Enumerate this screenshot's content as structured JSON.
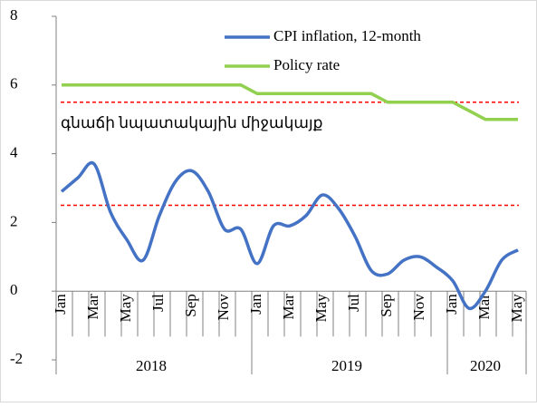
{
  "chart_data": {
    "type": "line",
    "categories": [
      "Jan",
      null,
      "Mar",
      null,
      "May",
      null,
      "Jul",
      null,
      "Sep",
      null,
      "Nov",
      null,
      "Jan",
      null,
      "Mar",
      null,
      "May",
      null,
      "Jul",
      null,
      "Sep",
      null,
      "Nov",
      null,
      "Jan",
      null,
      "Mar",
      null,
      "May"
    ],
    "groups": [
      {
        "label": "2018",
        "span": 12
      },
      {
        "label": "2019",
        "span": 12
      },
      {
        "label": "2020",
        "span": 5
      }
    ],
    "series": [
      {
        "name": "CPI inflation, 12-month",
        "color": "#4472c4",
        "smooth": true,
        "values": [
          2.9,
          3.3,
          3.7,
          2.3,
          1.5,
          0.9,
          2.2,
          3.2,
          3.5,
          2.9,
          1.8,
          1.8,
          0.8,
          1.9,
          1.9,
          2.2,
          2.8,
          2.4,
          1.6,
          0.6,
          0.5,
          0.9,
          1.0,
          0.7,
          0.3,
          -0.5,
          0.0,
          0.9,
          1.2
        ]
      },
      {
        "name": "Policy rate",
        "color": "#92d050",
        "smooth": false,
        "values": [
          6,
          6,
          6,
          6,
          6,
          6,
          6,
          6,
          6,
          6,
          6,
          6,
          5.75,
          5.75,
          5.75,
          5.75,
          5.75,
          5.75,
          5.75,
          5.75,
          5.5,
          5.5,
          5.5,
          5.5,
          5.5,
          5.25,
          5,
          5,
          5
        ]
      }
    ],
    "reference_lines": [
      5.5,
      2.5
    ],
    "reference_color": "#ff0000",
    "annotation": "գնաճի նպատակային միջակայք",
    "ylim": [
      -2,
      8
    ],
    "yticks": [
      -2,
      0,
      2,
      4,
      6,
      8
    ],
    "grid": false,
    "legend": "top-right"
  }
}
